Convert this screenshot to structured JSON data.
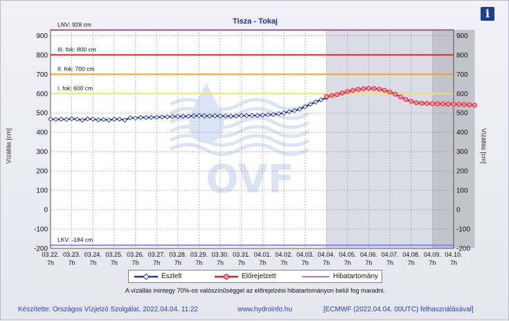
{
  "header": {
    "info_icon": "info-icon",
    "info_label": "i"
  },
  "chart_data": {
    "type": "line",
    "title": "Tisza - Tokaj",
    "ylabel_left": "Vízállás [cm]",
    "ylabel_right": "Vízállás [cm]",
    "ylim": [
      -200,
      930
    ],
    "yticks": [
      -200,
      -100,
      0,
      100,
      200,
      300,
      400,
      500,
      600,
      700,
      800,
      900
    ],
    "x_tick_labels": [
      [
        "03.22.",
        "7h"
      ],
      [
        "03.23.",
        "7h"
      ],
      [
        "03.24.",
        "7h"
      ],
      [
        "03.25.",
        "7h"
      ],
      [
        "03.26.",
        "7h"
      ],
      [
        "03.27.",
        "7h"
      ],
      [
        "03.28.",
        "7h"
      ],
      [
        "03.29.",
        "7h"
      ],
      [
        "03.30.",
        "7h"
      ],
      [
        "03.31.",
        "7h"
      ],
      [
        "04.01.",
        "7h"
      ],
      [
        "04.02.",
        "7h"
      ],
      [
        "04.03.",
        "7h"
      ],
      [
        "04.04.",
        "7h"
      ],
      [
        "04.05.",
        "7h"
      ],
      [
        "04.06.",
        "7h"
      ],
      [
        "04.07.",
        "7h"
      ],
      [
        "04.08.",
        "7h"
      ],
      [
        "04.09.",
        "7h"
      ],
      [
        "04.10.",
        "7h"
      ]
    ],
    "grid": true,
    "reference_lines": [
      {
        "label": "LNV: 928 cm",
        "value": 928,
        "color": "#d25bd2"
      },
      {
        "label": "III. fok: 800 cm",
        "value": 800,
        "color": "#e02020"
      },
      {
        "label": "II. fok: 700 cm",
        "value": 700,
        "color": "#e8a818"
      },
      {
        "label": "I. fok: 600 cm",
        "value": 600,
        "color": "#f2e070"
      },
      {
        "label": "LKV: -184 cm",
        "value": -184,
        "color": "#7f7fff"
      }
    ],
    "shaded_regions": [
      {
        "from": 13.0,
        "to": 18.0,
        "color": "#dcdce6"
      },
      {
        "from": 18.0,
        "to": 20.0,
        "color": "#c3c3cb"
      }
    ],
    "watermark": "OVF",
    "series": [
      {
        "name": "Észlelt",
        "color": "#1a2faa",
        "marker": "diamond",
        "x": [
          0.0,
          0.25,
          0.5,
          0.75,
          1.0,
          1.25,
          1.5,
          1.75,
          2.0,
          2.25,
          2.5,
          2.75,
          3.0,
          3.25,
          3.5,
          3.75,
          4.0,
          4.25,
          4.5,
          4.75,
          5.0,
          5.25,
          5.5,
          5.75,
          6.0,
          6.25,
          6.5,
          6.75,
          7.0,
          7.25,
          7.5,
          7.75,
          8.0,
          8.25,
          8.5,
          8.75,
          9.0,
          9.25,
          9.5,
          9.75,
          10.0,
          10.25,
          10.5,
          10.75,
          11.0,
          11.25,
          11.5,
          11.75,
          12.0,
          12.25,
          12.5,
          12.75,
          13.0
        ],
        "y": [
          468,
          466,
          468,
          466,
          470,
          467,
          463,
          469,
          468,
          464,
          466,
          463,
          468,
          468,
          463,
          475,
          473,
          477,
          476,
          477,
          478,
          479,
          480,
          481,
          482,
          483,
          483,
          485,
          486,
          485,
          484,
          485,
          484,
          485,
          483,
          484,
          486,
          486,
          487,
          487,
          489,
          490,
          492,
          496,
          500,
          506,
          512,
          520,
          532,
          545,
          557,
          568,
          578
        ]
      },
      {
        "name": "Előrejelzett",
        "color": "#d42020",
        "marker": "circle",
        "fill": "#ff8aa0",
        "x": [
          13.0,
          13.25,
          13.5,
          13.75,
          14.0,
          14.25,
          14.5,
          14.75,
          15.0,
          15.25,
          15.5,
          15.75,
          16.0,
          16.25,
          16.5,
          16.75,
          17.0,
          17.25,
          17.5,
          17.75,
          18.0,
          18.25,
          18.5,
          18.75,
          19.0,
          19.25,
          19.5,
          19.75,
          20.0
        ],
        "y": [
          585,
          590,
          595,
          603,
          610,
          617,
          622,
          625,
          627,
          626,
          623,
          617,
          608,
          597,
          583,
          570,
          560,
          553,
          550,
          549,
          548,
          547,
          547,
          546,
          545,
          545,
          544,
          542,
          540
        ]
      },
      {
        "name": "Hibatartomány",
        "color": "#b040b0",
        "x": [],
        "y": []
      }
    ],
    "legend": {
      "position": "bottom",
      "labels": [
        "Észlelt",
        "Előrejelzett",
        "Hibatartomány"
      ]
    }
  },
  "note": "A vízállás mintegy 70%-os valószínűséggel az előrejelzési hibatartományon belül fog maradni.",
  "footer": {
    "made_by": "Készítette: Országos Vízjelző Szolgálat, 2022.04.04. 11:22",
    "url": "www.hydroinfo.hu",
    "source": "[ECMWF (2022.04.04. 00UTC) felhasználásával]"
  }
}
